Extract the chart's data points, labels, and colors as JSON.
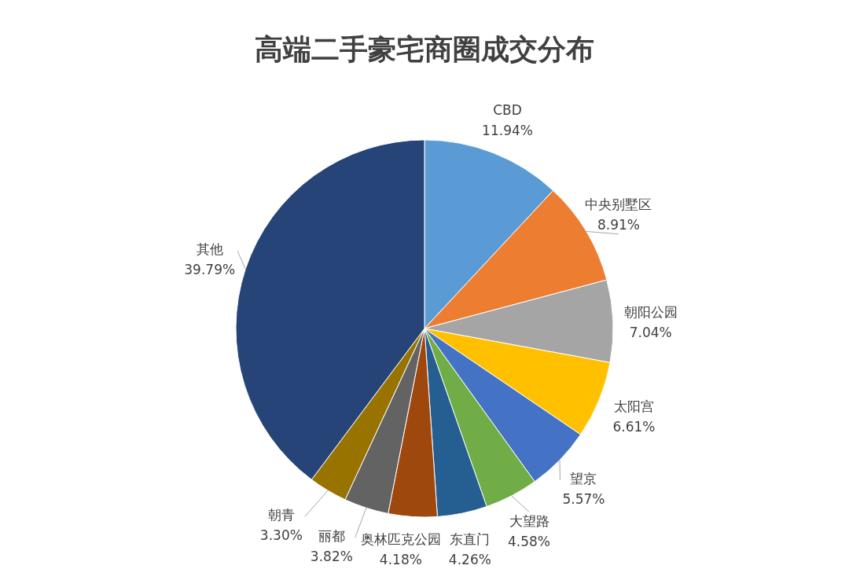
{
  "chart_data": {
    "type": "pie",
    "title": "高端二手豪宅商圈成交分布",
    "categories": [
      "CBD",
      "中央别墅区",
      "朝阳公园",
      "太阳宫",
      "望京",
      "大望路",
      "东直门",
      "奥林匹克公园",
      "丽都",
      "朝青",
      "其他"
    ],
    "values": [
      11.94,
      8.91,
      7.04,
      6.61,
      5.57,
      4.58,
      4.26,
      4.18,
      3.82,
      3.3,
      39.79
    ],
    "value_labels": [
      "11.94%",
      "8.91%",
      "7.04%",
      "6.61%",
      "5.57%",
      "4.58%",
      "4.26%",
      "4.18%",
      "3.82%",
      "3.30%",
      "39.79%"
    ],
    "colors": [
      "#5b9bd5",
      "#ed7d31",
      "#a5a5a5",
      "#ffc000",
      "#4472c4",
      "#70ad47",
      "#255e91",
      "#9e480e",
      "#636363",
      "#997300",
      "#264478"
    ]
  }
}
